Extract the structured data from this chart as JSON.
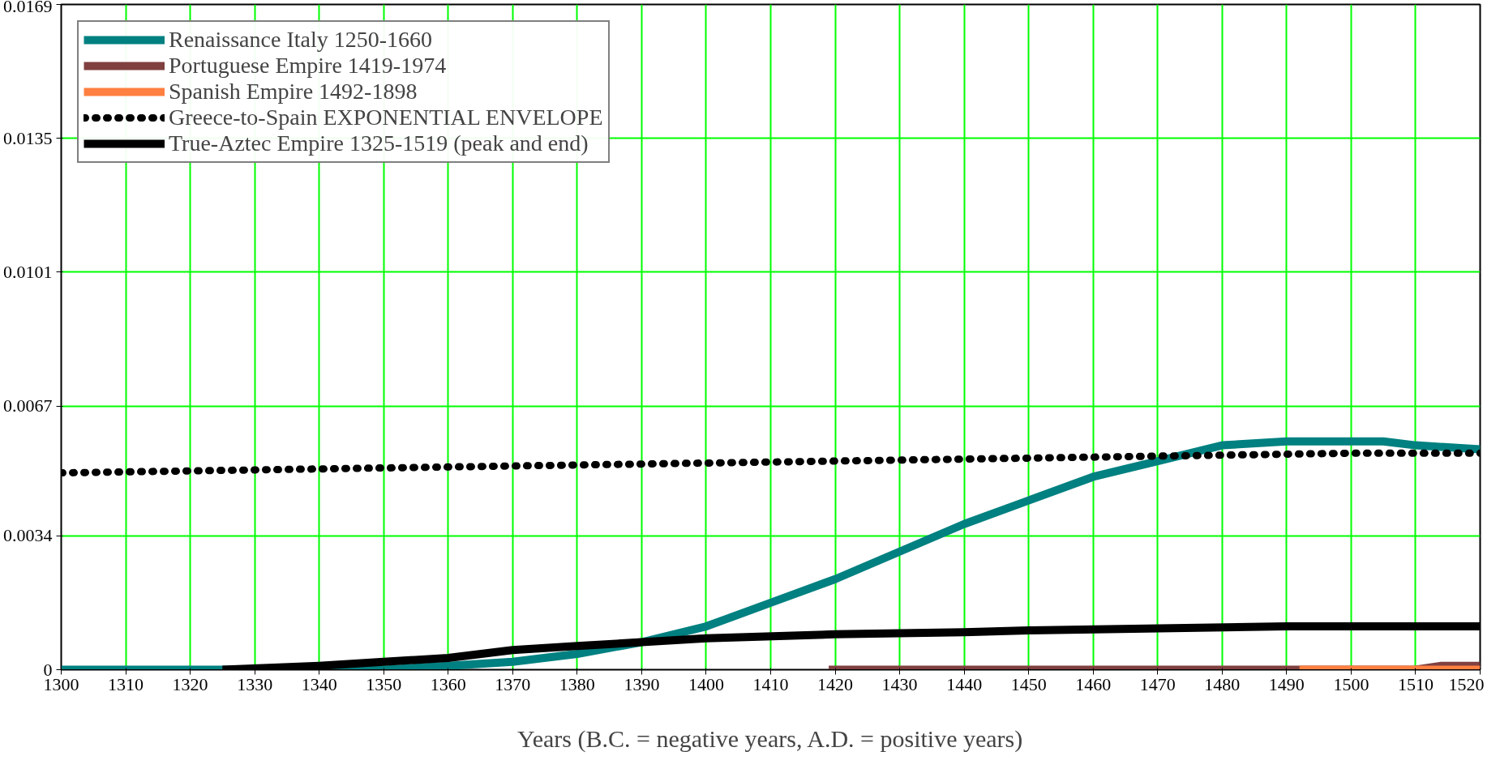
{
  "chart_data": {
    "type": "line",
    "xlabel": "Years (B.C. = negative years, A.D. = positive years)",
    "xlim": [
      1300,
      1520
    ],
    "xticks": [
      1300,
      1310,
      1320,
      1330,
      1340,
      1350,
      1360,
      1370,
      1380,
      1390,
      1400,
      1410,
      1420,
      1430,
      1440,
      1450,
      1460,
      1470,
      1480,
      1490,
      1500,
      1510,
      1520
    ],
    "ylim": [
      0,
      0.0169
    ],
    "yticks": [
      0,
      0.0034,
      0.0067,
      0.0101,
      0.0135,
      0.0169
    ],
    "grid": true,
    "legend": "top left",
    "series": [
      {
        "name": "Renaissance Italy 1250-1660",
        "color": "#008080",
        "x": [
          1300,
          1330,
          1350,
          1360,
          1370,
          1380,
          1390,
          1400,
          1410,
          1420,
          1430,
          1440,
          1450,
          1460,
          1470,
          1480,
          1490,
          1500,
          1505,
          1510,
          1520
        ],
        "values": [
          0,
          0,
          0,
          0.0001,
          0.0002,
          0.0004,
          0.0007,
          0.0011,
          0.0017,
          0.0023,
          0.003,
          0.0037,
          0.0043,
          0.0049,
          0.0053,
          0.0057,
          0.0058,
          0.0058,
          0.0058,
          0.0057,
          0.0056
        ]
      },
      {
        "name": "Portuguese Empire 1419-1974",
        "color": "#804040",
        "x": [
          1419,
          1510,
          1514,
          1520
        ],
        "values": [
          0,
          0,
          0.0001,
          0.0001
        ]
      },
      {
        "name": "Spanish Empire 1492-1898",
        "color": "#ff8040",
        "x": [
          1492,
          1520
        ],
        "values": [
          0,
          0
        ]
      },
      {
        "name": "Greece-to-Spain EXPONENTIAL ENVELOPE",
        "color": "#000000",
        "line_style": "dotted",
        "x": [
          1300,
          1340,
          1380,
          1420,
          1460,
          1500,
          1520
        ],
        "values": [
          0.005,
          0.0051,
          0.0052,
          0.0053,
          0.0054,
          0.0055,
          0.0055
        ]
      },
      {
        "name": "True-Aztec Empire 1325-1519 (peak and end)",
        "color": "#000000",
        "x": [
          1325,
          1340,
          1350,
          1360,
          1370,
          1380,
          1390,
          1400,
          1420,
          1440,
          1450,
          1490,
          1520
        ],
        "values": [
          0,
          0.0001,
          0.0002,
          0.0003,
          0.0005,
          0.0006,
          0.0007,
          0.0008,
          0.0009,
          0.00095,
          0.001,
          0.0011,
          0.0011
        ]
      }
    ]
  }
}
